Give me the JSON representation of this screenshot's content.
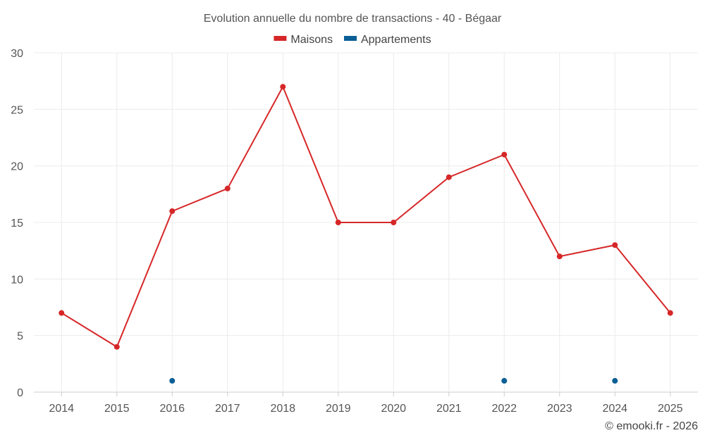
{
  "chart_data": {
    "type": "line",
    "title": "Evolution annuelle du nombre de transactions - 40 - Bégaar",
    "xlabel": "",
    "ylabel": "",
    "categories": [
      "2014",
      "2015",
      "2016",
      "2017",
      "2018",
      "2019",
      "2020",
      "2021",
      "2022",
      "2023",
      "2024",
      "2025"
    ],
    "ylim": [
      0,
      30
    ],
    "yticks": [
      0,
      5,
      10,
      15,
      20,
      25,
      30
    ],
    "grid": true,
    "legend_position": "top-center",
    "series": [
      {
        "name": "Maisons",
        "color": "#d62728",
        "values": [
          7,
          4,
          16,
          18,
          27,
          15,
          15,
          19,
          21,
          12,
          13,
          7
        ]
      },
      {
        "name": "Appartements",
        "color": "#0a5f96",
        "values": [
          null,
          null,
          1,
          null,
          null,
          null,
          null,
          null,
          1,
          null,
          1,
          null
        ]
      }
    ],
    "credit": "© emooki.fr - 2026"
  }
}
